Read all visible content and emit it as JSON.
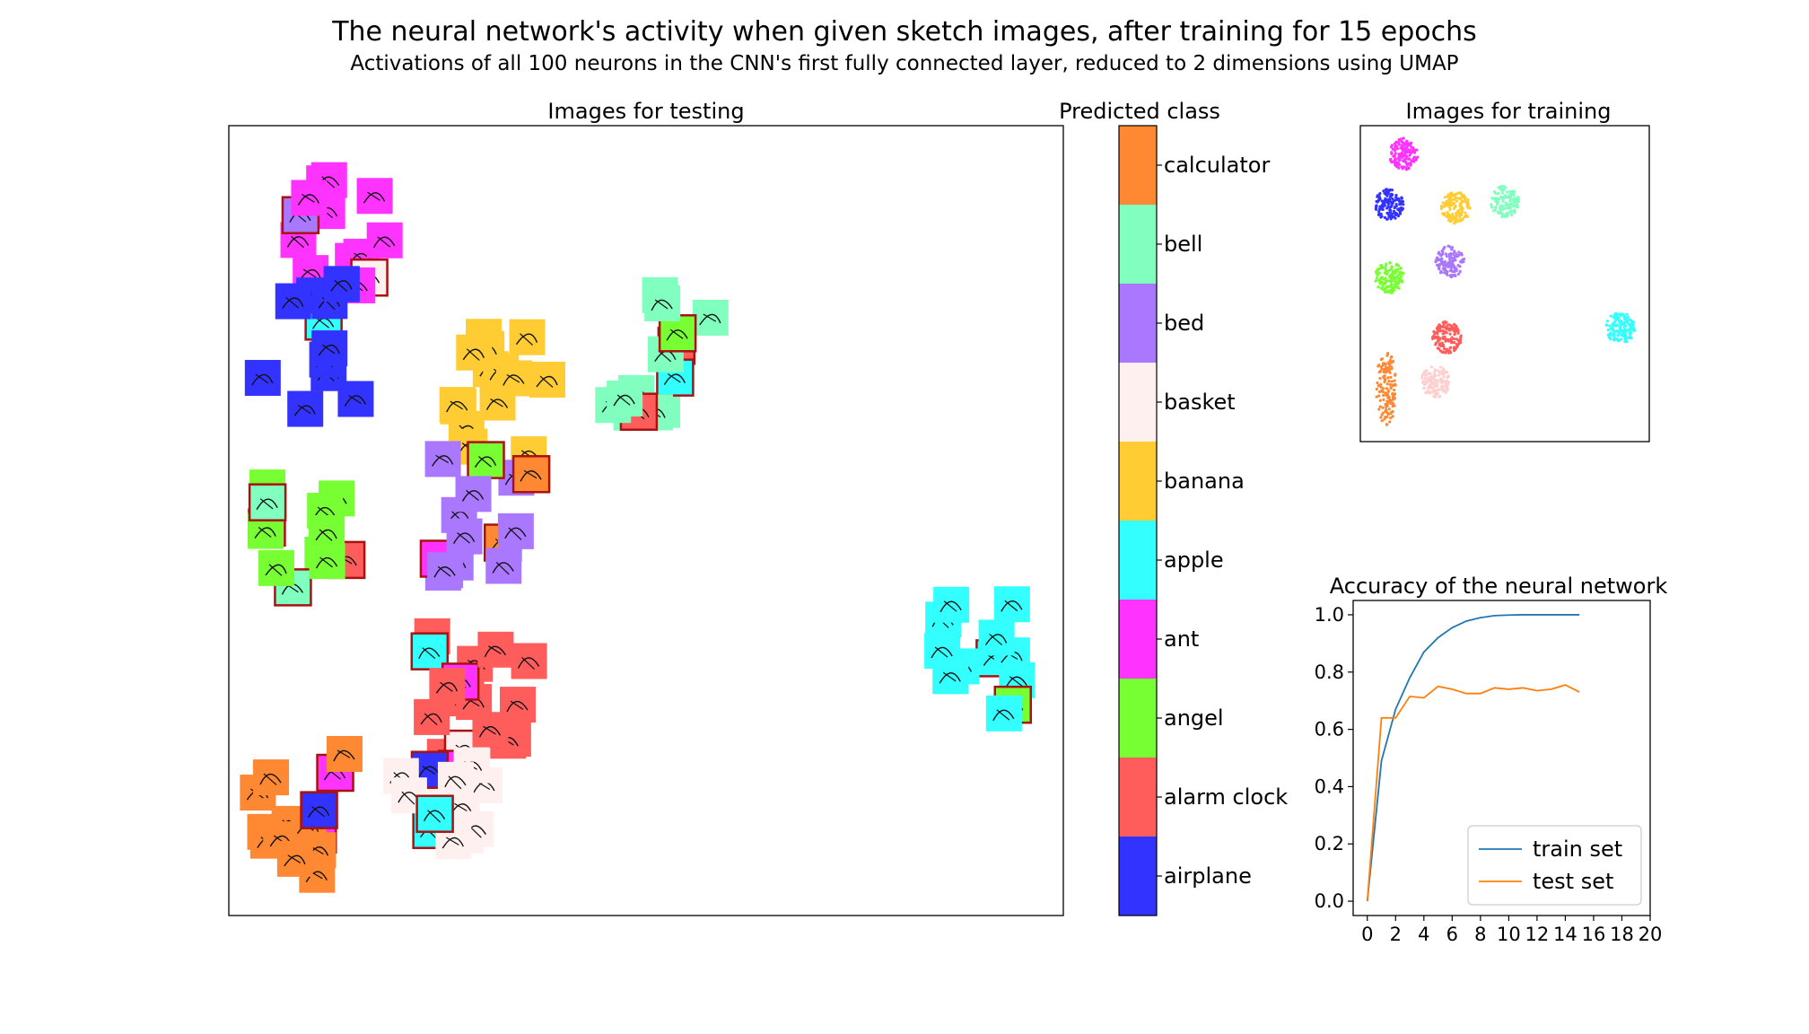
{
  "title": "The neural network's activity when given sketch images, after training for 15 epochs",
  "subtitle": "Activations of all 100 neurons in the CNN's first fully connected layer, reduced to 2 dimensions using UMAP",
  "colors": {
    "calculator": "#ff8833",
    "bell": "#80ffbf",
    "bed": "#aa77ff",
    "basket": "#fff0f0",
    "banana": "#ffcc33",
    "apple": "#33ffff",
    "ant": "#ff33ff",
    "angel": "#77ff33",
    "alarm clock": "#ff5c5c",
    "airplane": "#3333ff",
    "misclassified_border": "#aa1111",
    "train_line": "#1f77b4",
    "test_line": "#ff7f0e"
  },
  "chart_data": [
    {
      "type": "scatter",
      "title": "Images for testing",
      "axes_visible": false,
      "note_marks": "sketch thumbnails on colored squares; dark red border marks misclassified images",
      "clusters": [
        {
          "class": "ant",
          "x": 0.13,
          "y": 0.86,
          "n": 14
        },
        {
          "class": "airplane",
          "x": 0.1,
          "y": 0.72,
          "n": 12
        },
        {
          "class": "angel",
          "x": 0.09,
          "y": 0.48,
          "n": 12
        },
        {
          "class": "banana",
          "x": 0.33,
          "y": 0.66,
          "n": 14
        },
        {
          "class": "bell",
          "x": 0.52,
          "y": 0.71,
          "n": 14
        },
        {
          "class": "bed",
          "x": 0.31,
          "y": 0.51,
          "n": 14
        },
        {
          "class": "apple",
          "x": 0.9,
          "y": 0.32,
          "n": 12
        },
        {
          "class": "alarm clock",
          "x": 0.3,
          "y": 0.28,
          "n": 16
        },
        {
          "class": "calculator",
          "x": 0.08,
          "y": 0.13,
          "n": 14
        },
        {
          "class": "basket",
          "x": 0.25,
          "y": 0.13,
          "n": 14
        }
      ]
    },
    {
      "type": "colorbar",
      "title": "Predicted class",
      "classes": [
        "calculator",
        "bell",
        "bed",
        "basket",
        "banana",
        "apple",
        "ant",
        "angel",
        "alarm clock",
        "airplane"
      ]
    },
    {
      "type": "scatter",
      "title": "Images for training",
      "axes_visible": false,
      "clusters": [
        {
          "class": "ant",
          "x": 0.15,
          "y": 0.91
        },
        {
          "class": "airplane",
          "x": 0.1,
          "y": 0.75
        },
        {
          "class": "banana",
          "x": 0.33,
          "y": 0.74
        },
        {
          "class": "bell",
          "x": 0.5,
          "y": 0.76
        },
        {
          "class": "bed",
          "x": 0.31,
          "y": 0.57
        },
        {
          "class": "angel",
          "x": 0.1,
          "y": 0.52
        },
        {
          "class": "alarm clock",
          "x": 0.3,
          "y": 0.33
        },
        {
          "class": "basket",
          "x": 0.26,
          "y": 0.19
        },
        {
          "class": "calculator",
          "x": 0.09,
          "y": 0.17
        },
        {
          "class": "apple",
          "x": 0.9,
          "y": 0.36
        }
      ]
    },
    {
      "type": "line",
      "title": "Accuracy of the neural network",
      "xlim": [
        -1,
        20
      ],
      "ylim": [
        -0.05,
        1.05
      ],
      "xticks": [
        0,
        2,
        4,
        6,
        8,
        10,
        12,
        14,
        16,
        18,
        20
      ],
      "yticks": [
        "0.0",
        "0.2",
        "0.4",
        "0.6",
        "0.8",
        "1.0"
      ],
      "legend_position": "lower-right",
      "series": [
        {
          "name": "train set",
          "x": [
            0,
            1,
            2,
            3,
            4,
            5,
            6,
            7,
            8,
            9,
            10,
            11,
            12,
            13,
            14,
            15
          ],
          "values": [
            0.0,
            0.49,
            0.67,
            0.78,
            0.87,
            0.92,
            0.955,
            0.978,
            0.99,
            0.997,
            0.999,
            1.0,
            1.0,
            1.0,
            1.0,
            1.0
          ]
        },
        {
          "name": "test set",
          "x": [
            0,
            1,
            2,
            3,
            4,
            5,
            6,
            7,
            8,
            9,
            10,
            11,
            12,
            13,
            14,
            15
          ],
          "values": [
            0.0,
            0.64,
            0.64,
            0.715,
            0.71,
            0.75,
            0.74,
            0.725,
            0.725,
            0.745,
            0.74,
            0.745,
            0.735,
            0.74,
            0.755,
            0.73
          ]
        }
      ]
    }
  ]
}
